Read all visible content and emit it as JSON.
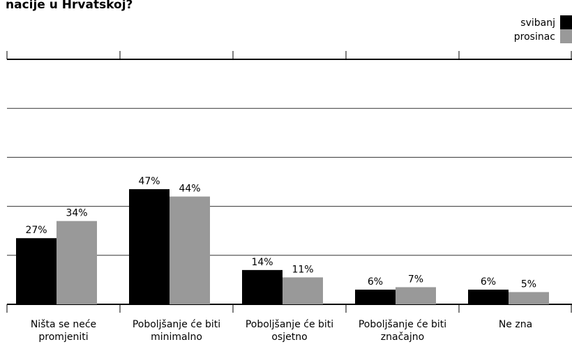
{
  "chart_data": {
    "type": "bar",
    "title": "nacije u Hrvatskoj?",
    "categories": [
      "Ništa se neće promjeniti",
      "Poboljšanje će biti minimalno",
      "Poboljšanje će biti osjetno",
      "Poboljšanje će biti značajno",
      "Ne zna"
    ],
    "series": [
      {
        "name": "svibanj",
        "color": "#000000",
        "values": [
          27,
          47,
          14,
          6,
          6
        ],
        "value_labels": [
          "27%",
          "47%",
          "14%",
          "6%",
          "6%"
        ]
      },
      {
        "name": "prosinac",
        "color": "#999999",
        "values": [
          34,
          44,
          11,
          7,
          5
        ],
        "value_labels": [
          "34%",
          "44%",
          "11%",
          "7%",
          "5%"
        ]
      }
    ],
    "ylim": [
      0,
      100
    ],
    "yticks": [
      0,
      20,
      40,
      60,
      80,
      100
    ],
    "grid": true
  }
}
